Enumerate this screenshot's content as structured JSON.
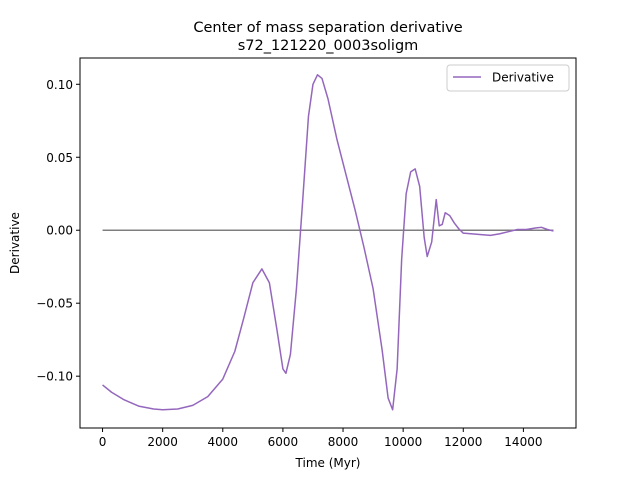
{
  "chart_data": {
    "type": "line",
    "title": "Center of mass separation derivative",
    "subtitle": "s72_121220_0003soligm",
    "xlabel": "Time (Myr)",
    "ylabel": "Derivative",
    "xlim": [
      -750,
      15750
    ],
    "ylim": [
      -0.1355,
      0.118
    ],
    "xticks": [
      0,
      2000,
      4000,
      6000,
      8000,
      10000,
      12000,
      14000
    ],
    "yticks": [
      -0.1,
      -0.05,
      0.0,
      0.05,
      0.1
    ],
    "xtick_labels": [
      "0",
      "2000",
      "4000",
      "6000",
      "8000",
      "10000",
      "12000",
      "14000"
    ],
    "ytick_labels": [
      "−0.10",
      "−0.05",
      "0.00",
      "0.05",
      "0.10"
    ],
    "grid": false,
    "legend": {
      "position": "top-right",
      "entries": [
        "Derivative"
      ]
    },
    "series": [
      {
        "name": "Derivative",
        "color": "#9467bd",
        "points": [
          [
            0,
            -0.106
          ],
          [
            300,
            -0.111
          ],
          [
            700,
            -0.116
          ],
          [
            1200,
            -0.1205
          ],
          [
            1700,
            -0.1225
          ],
          [
            2000,
            -0.123
          ],
          [
            2500,
            -0.1225
          ],
          [
            3000,
            -0.12
          ],
          [
            3500,
            -0.114
          ],
          [
            4000,
            -0.102
          ],
          [
            4400,
            -0.083
          ],
          [
            4700,
            -0.06
          ],
          [
            5000,
            -0.036
          ],
          [
            5300,
            -0.0265
          ],
          [
            5550,
            -0.036
          ],
          [
            5800,
            -0.068
          ],
          [
            6000,
            -0.095
          ],
          [
            6100,
            -0.098
          ],
          [
            6250,
            -0.085
          ],
          [
            6450,
            -0.04
          ],
          [
            6650,
            0.018
          ],
          [
            6850,
            0.078
          ],
          [
            7000,
            0.1
          ],
          [
            7150,
            0.1065
          ],
          [
            7300,
            0.104
          ],
          [
            7500,
            0.09
          ],
          [
            7800,
            0.062
          ],
          [
            8100,
            0.038
          ],
          [
            8400,
            0.014
          ],
          [
            8700,
            -0.012
          ],
          [
            9000,
            -0.04
          ],
          [
            9300,
            -0.082
          ],
          [
            9500,
            -0.115
          ],
          [
            9650,
            -0.123
          ],
          [
            9800,
            -0.095
          ],
          [
            9950,
            -0.02
          ],
          [
            10100,
            0.025
          ],
          [
            10250,
            0.04
          ],
          [
            10400,
            0.042
          ],
          [
            10550,
            0.03
          ],
          [
            10700,
            -0.005
          ],
          [
            10800,
            -0.018
          ],
          [
            10950,
            -0.008
          ],
          [
            11100,
            0.021
          ],
          [
            11200,
            0.003
          ],
          [
            11300,
            0.004
          ],
          [
            11400,
            0.012
          ],
          [
            11550,
            0.01
          ],
          [
            11700,
            0.005
          ],
          [
            11850,
            0.001
          ],
          [
            12000,
            -0.002
          ],
          [
            12300,
            -0.0025
          ],
          [
            12600,
            -0.003
          ],
          [
            12900,
            -0.0035
          ],
          [
            13200,
            -0.0025
          ],
          [
            13500,
            -0.001
          ],
          [
            13800,
            0.0005
          ],
          [
            14100,
            0.0005
          ],
          [
            14400,
            0.0015
          ],
          [
            14600,
            0.002
          ],
          [
            14800,
            0.0005
          ],
          [
            15000,
            -0.0005
          ]
        ]
      }
    ],
    "reference_line": {
      "color": "#000000",
      "opacity": 0.5,
      "x": [
        0,
        15000
      ],
      "y": 0
    }
  }
}
